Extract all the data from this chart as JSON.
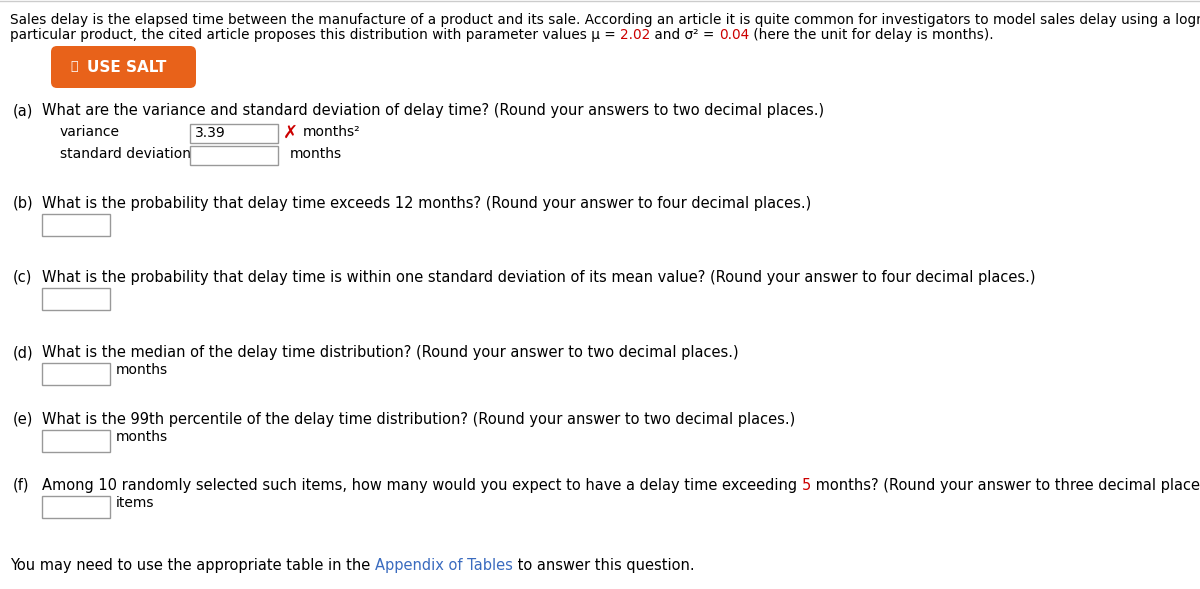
{
  "background_color": "#ffffff",
  "intro_line1": "Sales delay is the elapsed time between the manufacture of a product and its sale. According an article it is quite common for investigators to model sales delay using a lognormal distribution. For a",
  "intro_line2_pre": "particular product, the cited article proposes this distribution with parameter values μ = ",
  "intro_line2_mu": "2.02",
  "intro_line2_mid": " and σ² = ",
  "intro_line2_sigma": "0.04",
  "intro_line2_post": " (here the unit for delay is months).",
  "salt_button_color": "#e8621a",
  "salt_text": "USE SALT",
  "part_a_label": "(a)",
  "part_a_text": "What are the variance and standard deviation of delay time? (Round your answers to two decimal places.)",
  "variance_label": "variance",
  "variance_value": "3.39",
  "variance_unit": "months²",
  "std_label": "standard deviation",
  "std_unit": "months",
  "part_b_label": "(b)",
  "part_b_text": "What is the probability that delay time exceeds 12 months? (Round your answer to four decimal places.)",
  "part_c_label": "(c)",
  "part_c_text": "What is the probability that delay time is within one standard deviation of its mean value? (Round your answer to four decimal places.)",
  "part_d_label": "(d)",
  "part_d_text": "What is the median of the delay time distribution? (Round your answer to two decimal places.)",
  "part_d_unit": "months",
  "part_e_label": "(e)",
  "part_e_text": "What is the 99th percentile of the delay time distribution? (Round your answer to two decimal places.)",
  "part_e_unit": "months",
  "part_f_label": "(f)",
  "part_f_pre": "Among 10 randomly selected such items, how many would you expect to have a delay time exceeding ",
  "part_f_highlight": "5",
  "part_f_post": " months? (Round your answer to three decimal places.)",
  "part_f_unit": "items",
  "footer_pre": "You may need to use the appropriate table in the ",
  "footer_link": "Appendix of Tables",
  "footer_post": " to answer this question.",
  "text_color": "#000000",
  "red_color": "#cc0000",
  "blue_color": "#3a6bbf",
  "orange_color": "#e8621a",
  "box_border_color": "#999999",
  "x_mark_color": "#cc0000",
  "line_color": "#cccccc"
}
